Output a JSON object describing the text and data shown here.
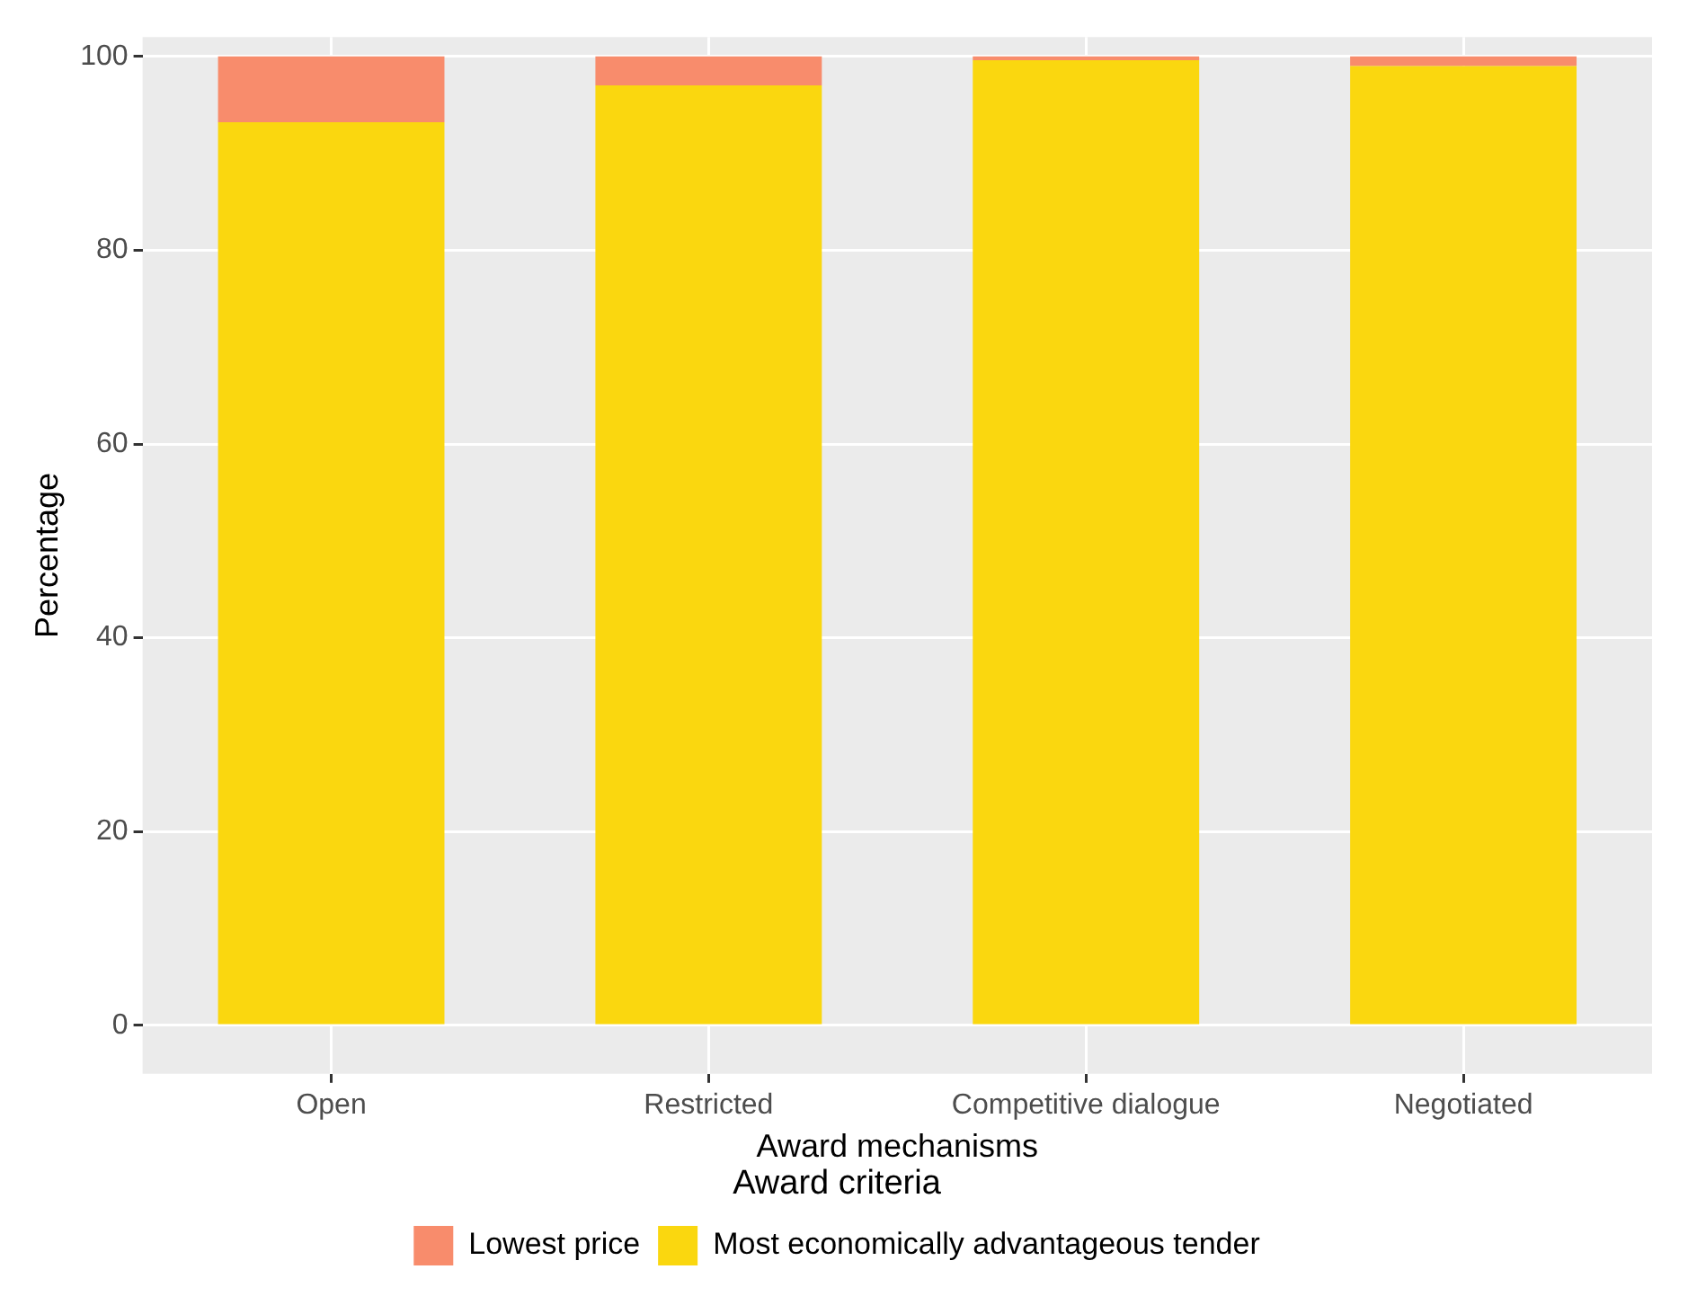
{
  "chart_data": {
    "type": "bar",
    "xlabel": "Award mechanisms",
    "ylabel": "Percentage",
    "legend_title": "Award criteria",
    "categories": [
      "Open",
      "Restricted",
      "Competitive dialogue",
      "Negotiated"
    ],
    "stacked": true,
    "series": [
      {
        "name": "Most economically advantageous tender",
        "color": "#fad70f",
        "values": [
          93.2,
          97.0,
          99.6,
          99.0
        ]
      },
      {
        "name": "Lowest price",
        "color": "#f88c6c",
        "values": [
          6.8,
          3.0,
          0.4,
          1.0
        ]
      }
    ],
    "ylim": [
      -5,
      102
    ],
    "yticks": [
      0,
      20,
      40,
      60,
      80,
      100
    ],
    "grid": true,
    "legend": "bottom"
  }
}
